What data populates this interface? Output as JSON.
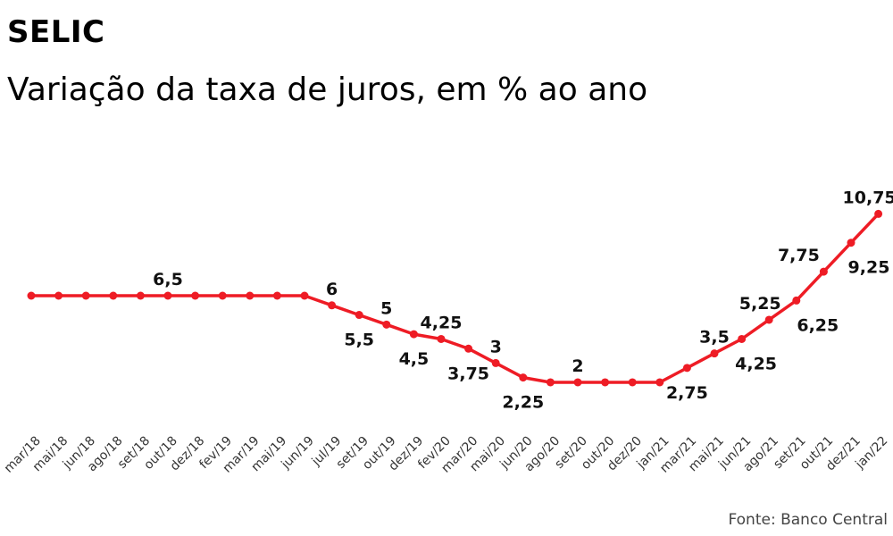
{
  "title": "SELIC",
  "subtitle": "Variação da taxa de juros, em % ao ano",
  "source": "Fonte: Banco Central",
  "colors": {
    "line": "#ee1c25",
    "marker": "#ee1c25",
    "text": "#111111"
  },
  "chart_data": {
    "type": "line",
    "categories": [
      "mar/18",
      "mai/18",
      "jun/18",
      "ago/18",
      "set/18",
      "out/18",
      "dez/18",
      "fev/19",
      "mar/19",
      "mai/19",
      "jun/19",
      "jul/19",
      "set/19",
      "out/19",
      "dez/19",
      "fev/20",
      "mar/20",
      "mai/20",
      "jun/20",
      "ago/20",
      "set/20",
      "out/20",
      "dez/20",
      "jan/21",
      "mar/21",
      "mai/21",
      "jun/21",
      "ago/21",
      "set/21",
      "out/21",
      "dez/21",
      "jan/22"
    ],
    "series": [
      {
        "values": [
          6.5,
          6.5,
          6.5,
          6.5,
          6.5,
          6.5,
          6.5,
          6.5,
          6.5,
          6.5,
          6.5,
          6,
          5.5,
          5,
          4.5,
          4.25,
          3.75,
          3,
          2.25,
          2,
          2,
          2,
          2,
          2,
          2.75,
          3.5,
          4.25,
          5.25,
          6.25,
          7.75,
          9.25,
          10.75
        ]
      }
    ],
    "data_labels": [
      {
        "index": 5,
        "text": "6,5"
      },
      {
        "index": 11,
        "text": "6"
      },
      {
        "index": 12,
        "text": "5,5"
      },
      {
        "index": 13,
        "text": "5"
      },
      {
        "index": 14,
        "text": "4,5"
      },
      {
        "index": 15,
        "text": "4,25"
      },
      {
        "index": 16,
        "text": "3,75"
      },
      {
        "index": 17,
        "text": "3"
      },
      {
        "index": 18,
        "text": "2,25"
      },
      {
        "index": 20,
        "text": "2"
      },
      {
        "index": 24,
        "text": "2,75"
      },
      {
        "index": 25,
        "text": "3,5"
      },
      {
        "index": 26,
        "text": "4,25"
      },
      {
        "index": 27,
        "text": "5,25"
      },
      {
        "index": 28,
        "text": "6,25"
      },
      {
        "index": 29,
        "text": "7,75"
      },
      {
        "index": 30,
        "text": "9,25"
      },
      {
        "index": 31,
        "text": "10,75"
      }
    ],
    "grid": false,
    "legend": "none"
  }
}
